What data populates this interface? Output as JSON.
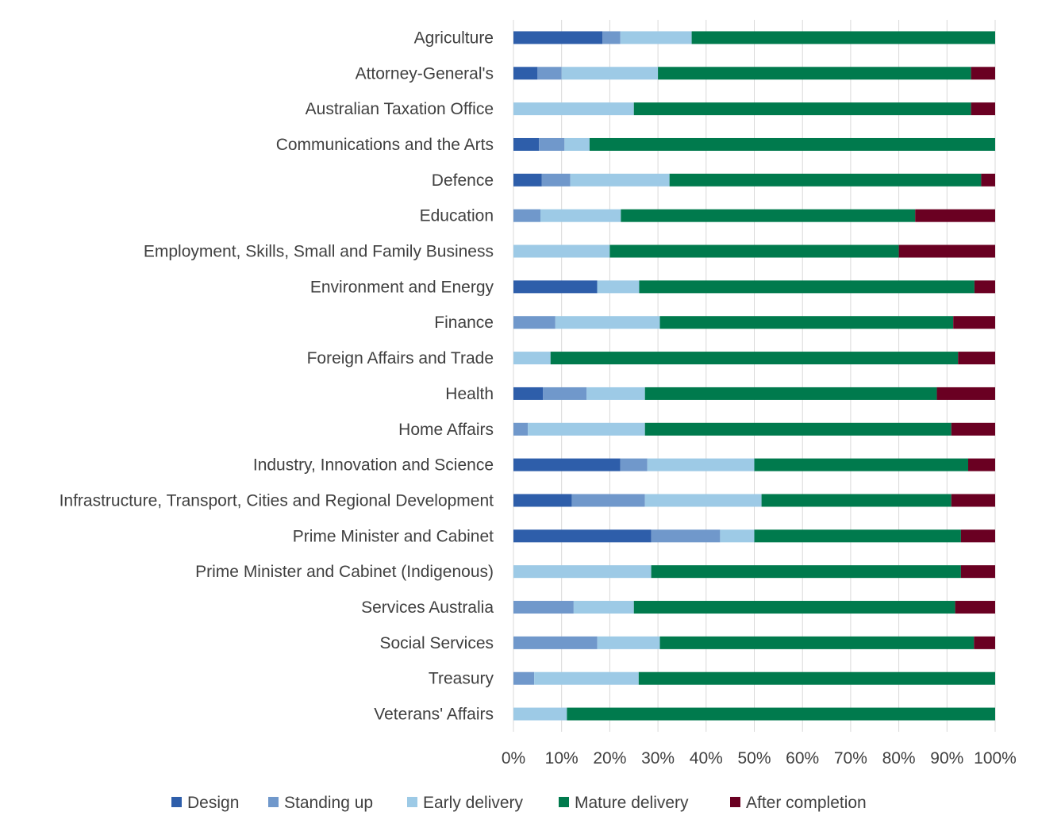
{
  "chart_data": {
    "type": "bar",
    "orientation": "horizontal",
    "stacked": "percent",
    "title": "",
    "xlabel": "",
    "ylabel": "",
    "xlim": [
      0,
      100
    ],
    "x_ticks": [
      "0%",
      "10%",
      "20%",
      "30%",
      "40%",
      "50%",
      "60%",
      "70%",
      "80%",
      "90%",
      "100%"
    ],
    "grid": "vertical",
    "legend_position": "bottom",
    "categories": [
      "Agriculture",
      "Attorney-General's",
      "Australian Taxation Office",
      "Communications and the Arts",
      "Defence",
      "Education",
      "Employment, Skills, Small and Family Business",
      "Environment and Energy",
      "Finance",
      "Foreign Affairs and Trade",
      "Health",
      "Home Affairs",
      "Industry, Innovation and Science",
      "Infrastructure, Transport, Cities and Regional Development",
      "Prime Minister and Cabinet",
      "Prime Minister and Cabinet (Indigenous)",
      "Services Australia",
      "Social Services",
      "Treasury",
      "Veterans' Affairs"
    ],
    "series": [
      {
        "name": "Design",
        "color": "#2E5EAA",
        "values": [
          18.5,
          5,
          0,
          5.3,
          5.9,
          0,
          0,
          17.4,
          0,
          0,
          6.1,
          0,
          22.2,
          12.1,
          28.6,
          0,
          0,
          0,
          0,
          0
        ]
      },
      {
        "name": "Standing up",
        "color": "#7098CB",
        "values": [
          3.7,
          5,
          0,
          5.3,
          5.9,
          5.6,
          0,
          0,
          8.7,
          0,
          9.1,
          3,
          5.6,
          15.2,
          14.3,
          0,
          12.5,
          17.4,
          4.3,
          0
        ]
      },
      {
        "name": "Early delivery",
        "color": "#9DCAE6",
        "values": [
          14.8,
          20,
          25,
          5.2,
          20.6,
          16.7,
          20,
          8.7,
          21.7,
          7.7,
          12.1,
          24.3,
          22.2,
          24.2,
          7.1,
          28.6,
          12.5,
          13,
          21.7,
          11.1
        ]
      },
      {
        "name": "Mature delivery",
        "color": "#007A4D",
        "values": [
          63,
          65,
          70,
          84.2,
          64.7,
          61.1,
          60,
          69.6,
          60.9,
          84.6,
          60.6,
          63.6,
          44.4,
          39.4,
          42.9,
          64.3,
          66.7,
          65.2,
          74,
          88.9
        ]
      },
      {
        "name": "After completion",
        "color": "#6A0022",
        "values": [
          0,
          5,
          5,
          0,
          2.9,
          16.6,
          20,
          4.3,
          8.7,
          7.7,
          12.1,
          9.1,
          5.6,
          9.1,
          7.1,
          7.1,
          8.3,
          4.4,
          0,
          0
        ]
      }
    ]
  }
}
